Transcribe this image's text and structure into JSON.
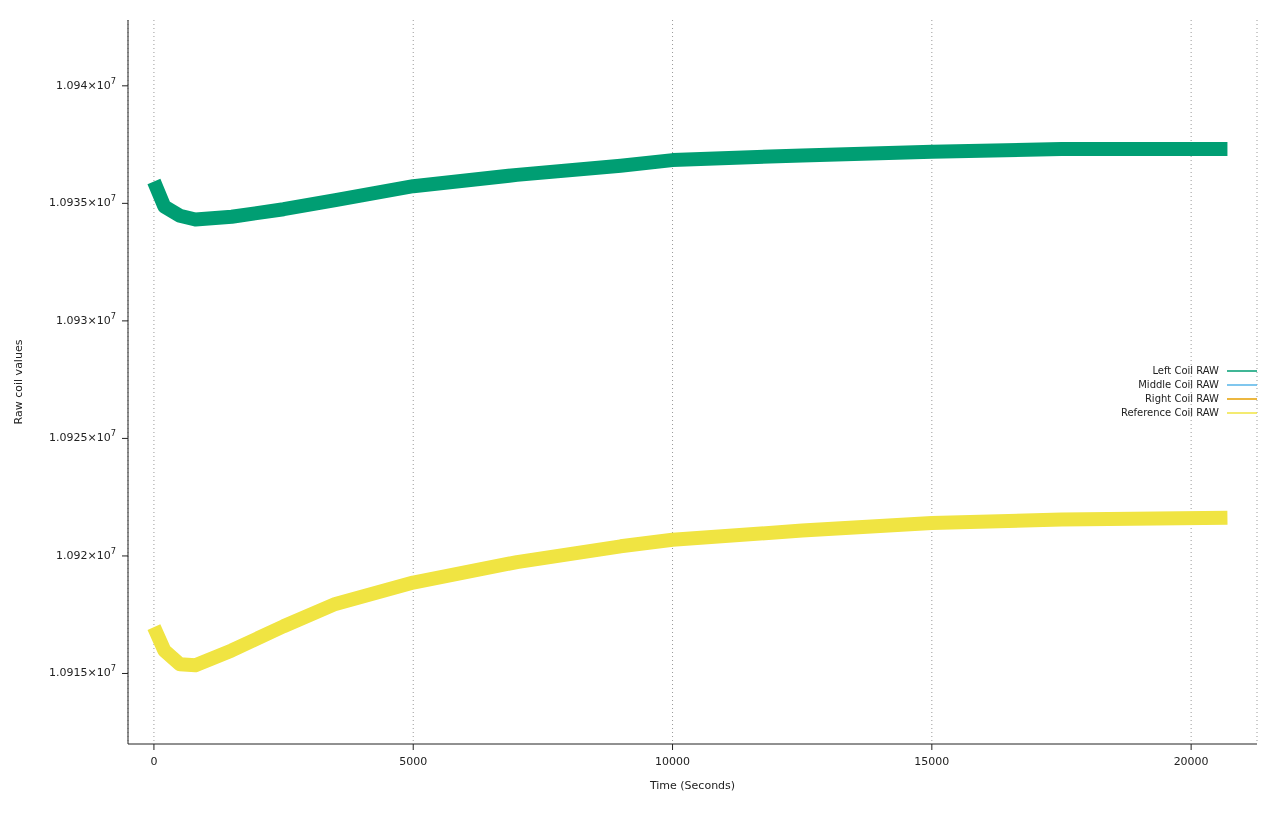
{
  "chart_data": {
    "type": "line",
    "xlabel": "Time (Seconds)",
    "ylabel": "Raw coil values",
    "x": [
      0,
      200,
      500,
      800,
      1500,
      2500,
      3500,
      5000,
      7000,
      9000,
      10000,
      12500,
      15000,
      17500,
      20700
    ],
    "series": [
      {
        "name": "Left Coil RAW",
        "color": "#009e73",
        "values": [
          10935930,
          10934870,
          10934470,
          10934310,
          10934430,
          10934750,
          10935140,
          10935730,
          10936210,
          10936600,
          10936840,
          10937040,
          10937200,
          10937310,
          10937310
        ]
      },
      {
        "name": "Middle Coil RAW",
        "color": "#56b4e9",
        "values": [
          null,
          null,
          null,
          null,
          null,
          null,
          null,
          null,
          null,
          null,
          null,
          null,
          null,
          null,
          null
        ]
      },
      {
        "name": "Right Coil RAW",
        "color": "#e69f00",
        "values": [
          null,
          null,
          null,
          null,
          null,
          null,
          null,
          null,
          null,
          null,
          null,
          null,
          null,
          null,
          null
        ]
      },
      {
        "name": "Reference Coil RAW",
        "color": "#f0e442",
        "values": [
          10916970,
          10915980,
          10915390,
          10915350,
          10915980,
          10917010,
          10917960,
          10918870,
          10919740,
          10920410,
          10920690,
          10921080,
          10921400,
          10921550,
          10921630
        ]
      }
    ],
    "xlim": [
      -500,
      21270
    ],
    "xticks": [
      0,
      5000,
      10000,
      15000,
      20000
    ],
    "ylim": [
      10912000,
      10942800
    ],
    "yticks": [
      {
        "value": 10915000,
        "label": "1.0915×10$^{7}$"
      },
      {
        "value": 10920000,
        "label": "1.092×10$^{7}$"
      },
      {
        "value": 10925000,
        "label": "1.0925×10$^{7}$"
      },
      {
        "value": 10930000,
        "label": "1.093×10$^{7}$"
      },
      {
        "value": 10935000,
        "label": "1.0935×10$^{7}$"
      },
      {
        "value": 10940000,
        "label": "1.094×10$^{7}$"
      }
    ],
    "grid": "x",
    "legend": "right"
  }
}
